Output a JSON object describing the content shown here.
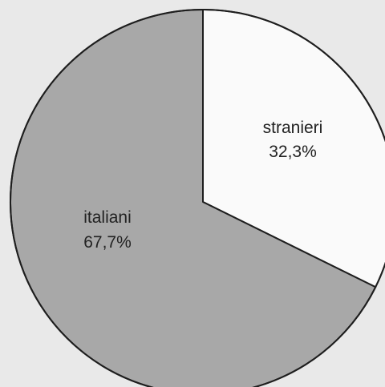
{
  "chart_data": {
    "type": "pie",
    "slices": [
      {
        "label": "stranieri",
        "value": 32.3,
        "value_label": "32,3%",
        "color": "#fafafa"
      },
      {
        "label": "italiani",
        "value": 67.7,
        "value_label": "67,7%",
        "color": "#a8a8a8"
      }
    ],
    "start_angle_deg": 0,
    "direction": "clockwise",
    "outline_color": "#1e1e1e",
    "background_color": "#e9e9e9"
  }
}
